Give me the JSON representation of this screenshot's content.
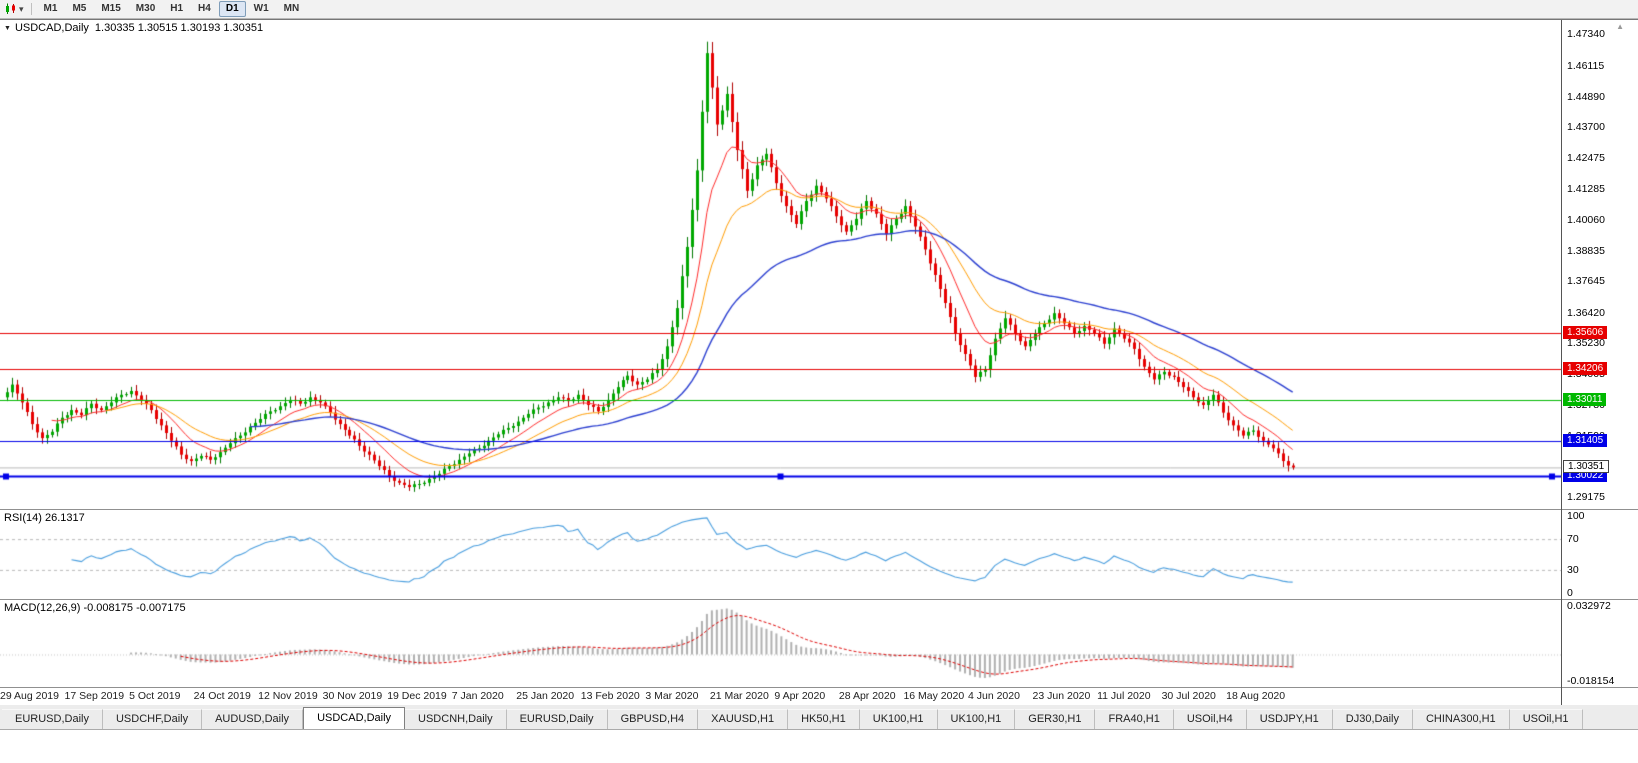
{
  "icons": {
    "collapse": "▼",
    "caret": "▾",
    "scroll_up": "▲"
  },
  "toolbar": {
    "timeframes": [
      "M1",
      "M5",
      "M15",
      "M30",
      "H1",
      "H4",
      "D1",
      "W1",
      "MN"
    ],
    "active": "D1"
  },
  "chart_data": {
    "type": "candlestick",
    "symbol": "USDCAD",
    "timeframe": "Daily",
    "title_text": "USDCAD,Daily",
    "ohlc_text": "1.30335 1.30515 1.30193 1.30351",
    "current_bar": {
      "open": 1.30335,
      "high": 1.30515,
      "low": 1.30193,
      "close": 1.30351
    },
    "price_range": {
      "max": 1.479,
      "min": 1.2872
    },
    "price_axis_labels": [
      "1.47340",
      "1.46115",
      "1.44890",
      "1.43700",
      "1.42475",
      "1.41285",
      "1.40060",
      "1.38835",
      "1.37645",
      "1.36420",
      "1.35230",
      "1.34005",
      "1.32780",
      "1.31590",
      "1.30365",
      "1.29175"
    ],
    "x_labels": [
      "29 Aug 2019",
      "17 Sep 2019",
      "5 Oct 2019",
      "24 Oct 2019",
      "12 Nov 2019",
      "30 Nov 2019",
      "19 Dec 2019",
      "7 Jan 2020",
      "25 Jan 2020",
      "13 Feb 2020",
      "3 Mar 2020",
      "21 Mar 2020",
      "9 Apr 2020",
      "28 Apr 2020",
      "16 May 2020",
      "4 Jun 2020",
      "23 Jun 2020",
      "11 Jul 2020",
      "30 Jul 2020",
      "18 Aug 2020"
    ],
    "closes": [
      1.331,
      1.336,
      1.329,
      1.3205,
      1.315,
      1.3175,
      1.323,
      1.326,
      1.324,
      1.3285,
      1.326,
      1.329,
      1.332,
      1.3335,
      1.33,
      1.326,
      1.32,
      1.314,
      1.3085,
      1.306,
      1.308,
      1.3065,
      1.3095,
      1.313,
      1.316,
      1.3195,
      1.3225,
      1.3255,
      1.3275,
      1.33,
      1.3285,
      1.331,
      1.329,
      1.325,
      1.3205,
      1.316,
      1.312,
      1.3085,
      1.304,
      1.3,
      1.2975,
      1.2958,
      1.297,
      1.299,
      1.301,
      1.304,
      1.3065,
      1.309,
      1.311,
      1.314,
      1.3165,
      1.319,
      1.3215,
      1.3245,
      1.327,
      1.329,
      1.331,
      1.3295,
      1.332,
      1.328,
      1.3255,
      1.33,
      1.335,
      1.3395,
      1.336,
      1.338,
      1.342,
      1.351,
      1.366,
      1.39,
      1.42,
      1.466,
      1.438,
      1.45,
      1.428,
      1.412,
      1.422,
      1.4265,
      1.415,
      1.406,
      1.399,
      1.408,
      1.414,
      1.409,
      1.402,
      1.396,
      1.401,
      1.408,
      1.403,
      1.395,
      1.401,
      1.406,
      1.398,
      1.389,
      1.379,
      1.368,
      1.356,
      1.348,
      1.339,
      1.342,
      1.354,
      1.362,
      1.356,
      1.351,
      1.356,
      1.36,
      1.364,
      1.36,
      1.356,
      1.359,
      1.356,
      1.352,
      1.358,
      1.354,
      1.35,
      1.343,
      1.338,
      1.341,
      1.339,
      1.335,
      1.331,
      1.328,
      1.332,
      1.325,
      1.32,
      1.316,
      1.318,
      1.314,
      1.311,
      1.306,
      1.3035
    ],
    "colors": {
      "up": "#00a800",
      "down": "#e80000",
      "up_border": "#007a00",
      "down_border": "#b00000",
      "bid_line": "#b8b8b8"
    },
    "moving_averages": [
      {
        "name": "fast-ma",
        "period": 10,
        "color": "#ff2a2a",
        "width": 1
      },
      {
        "name": "mid-ma",
        "period": 21,
        "color": "#ff9c00",
        "width": 1
      },
      {
        "name": "slow-ma",
        "period": 50,
        "color": "#2b3fd0",
        "width": 1.4
      }
    ],
    "hlines": [
      {
        "price": 1.35606,
        "label": "1.35606",
        "color": "#e60000",
        "selected": false
      },
      {
        "price": 1.34206,
        "label": "1.34206",
        "color": "#e60000",
        "selected": false
      },
      {
        "price": 1.33011,
        "label": "1.33011",
        "color": "#00b800",
        "selected": false
      },
      {
        "price": 1.31405,
        "label": "1.31405",
        "color": "#0000e8",
        "selected": false
      },
      {
        "price": 1.30022,
        "label": "1.30022",
        "color": "#0000e8",
        "selected": true
      }
    ],
    "bid": {
      "price": 1.30351,
      "label": "1.30351"
    },
    "rsi": {
      "label": "RSI(14) 26.1317",
      "period": 14,
      "current": 26.1317,
      "levels": [
        70,
        30
      ],
      "axis_labels": [
        "100",
        "70",
        "30",
        "0"
      ],
      "color": "#4a9ede"
    },
    "macd": {
      "label": "MACD(12,26,9) -0.008175 -0.007175",
      "fast": 12,
      "slow": 26,
      "signal": 9,
      "macd_value": -0.008175,
      "signal_value": -0.007175,
      "axis_labels": [
        "0.032972",
        "-0.018154"
      ],
      "range": {
        "max": 0.0345,
        "min": -0.0195
      },
      "histogram_color": "#b0b0b0",
      "signal_color": "#dd0000"
    }
  },
  "tabs": {
    "items": [
      "EURUSD,Daily",
      "USDCHF,Daily",
      "AUDUSD,Daily",
      "USDCAD,Daily",
      "USDCNH,Daily",
      "EURUSD,Daily",
      "GBPUSD,H4",
      "XAUUSD,H1",
      "HK50,H1",
      "UK100,H1",
      "UK100,H1",
      "GER30,H1",
      "FRA40,H1",
      "USOil,H4",
      "USDJPY,H1",
      "DJ30,Daily",
      "CHINA300,H1",
      "USOil,H1"
    ],
    "active_index": 3
  }
}
